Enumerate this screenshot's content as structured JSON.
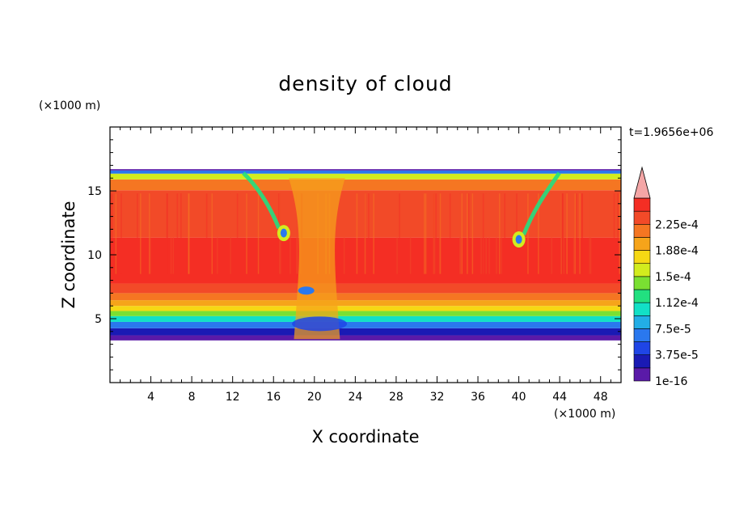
{
  "chart_data": {
    "type": "heatmap",
    "title": "density of cloud",
    "xlabel": "X coordinate",
    "ylabel": "Z coordinate",
    "x_unit": "(×1000 m)",
    "y_unit": "(×1000 m)",
    "time_label": "t=1.9656e+06",
    "xlim": [
      0,
      50
    ],
    "ylim": [
      0,
      20
    ],
    "xticks": [
      4,
      8,
      12,
      16,
      20,
      24,
      28,
      32,
      36,
      40,
      44,
      48
    ],
    "yticks": [
      5,
      10,
      15
    ],
    "grid": false,
    "colorbar": {
      "levels": [
        1e-16,
        1.875e-05,
        3.75e-05,
        5.625e-05,
        7.5e-05,
        9.375e-05,
        0.0001125,
        0.00013125,
        0.00015,
        0.00016875,
        0.0001875,
        0.00020625,
        0.000225,
        0.00024375
      ],
      "tick_labels": [
        "1e-16",
        "3.75e-5",
        "7.5e-5",
        "1.12e-4",
        "1.5e-4",
        "1.88e-4",
        "2.25e-4"
      ],
      "colors": [
        "#5a1aa8",
        "#1a1ab4",
        "#1f45e6",
        "#2a78ee",
        "#22aee6",
        "#12e0c6",
        "#22e080",
        "#7ae032",
        "#d2ec1e",
        "#f6d814",
        "#f6a41a",
        "#f57622",
        "#f24a28",
        "#f42e24"
      ],
      "overflow_color": "#f4a6a6"
    },
    "cloud_layer": {
      "z_bottom": 3.3,
      "z_top": 16.7,
      "profile": [
        {
          "z": 3.4,
          "level": 0
        },
        {
          "z": 4.0,
          "level": 1
        },
        {
          "z": 4.5,
          "level": 3
        },
        {
          "z": 5.0,
          "level": 5
        },
        {
          "z": 5.4,
          "level": 7
        },
        {
          "z": 5.8,
          "level": 9
        },
        {
          "z": 6.2,
          "level": 10
        },
        {
          "z": 6.7,
          "level": 11
        },
        {
          "z": 7.3,
          "level": 12
        },
        {
          "z": 8.2,
          "level": 13
        },
        {
          "z": 14.5,
          "level": 12
        },
        {
          "z": 15.6,
          "level": 11
        },
        {
          "z": 16.2,
          "level": 8
        },
        {
          "z": 16.5,
          "level": 3
        },
        {
          "z": 16.7,
          "level": 0
        }
      ],
      "features": [
        {
          "name": "left-downdraft",
          "x": 17.0,
          "z": 11.7
        },
        {
          "name": "right-downdraft",
          "x": 40.0,
          "z": 11.2
        },
        {
          "name": "central-plume",
          "x": 20.0,
          "z": 8.0
        }
      ]
    }
  }
}
